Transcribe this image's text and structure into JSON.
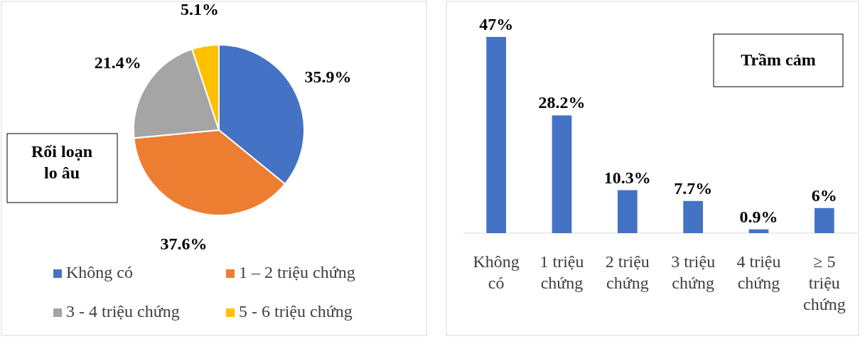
{
  "chart_data": [
    {
      "type": "pie",
      "title": "Rối loạn lo âu",
      "categories": [
        "Không có",
        "1 – 2 triệu chứng",
        "3 - 4 triệu chứng",
        "5 - 6 triệu chứng"
      ],
      "values": [
        35.9,
        37.6,
        21.4,
        5.1
      ],
      "colors": [
        "#4472c4",
        "#ed7d31",
        "#a5a5a5",
        "#ffc000"
      ],
      "value_labels": [
        "35.9%",
        "37.6%",
        "21.4%",
        "5.1%"
      ],
      "legend": "bottom"
    },
    {
      "type": "bar",
      "title": "Trầm cảm",
      "categories": [
        "Không có",
        "1 triệu chứng",
        "2 triệu chứng",
        "3 triệu chứng",
        "4 triệu chứng",
        "≥ 5 triệu chứng"
      ],
      "values": [
        47,
        28.2,
        10.3,
        7.7,
        0.9,
        6
      ],
      "color": "#4472c4",
      "value_labels": [
        "47%",
        "28.2%",
        "10.3%",
        "7.7%",
        "0.9%",
        "6%"
      ]
    }
  ]
}
